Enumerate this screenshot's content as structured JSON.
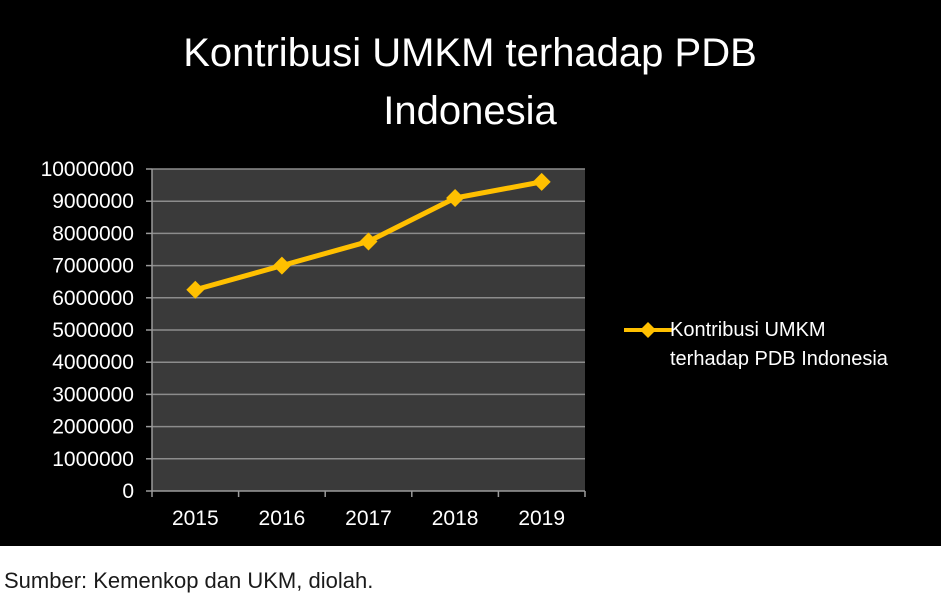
{
  "chart_data": {
    "type": "line",
    "title": "Kontribusi UMKM terhadap PDB Indonesia",
    "title_lines": [
      "Kontribusi UMKM terhadap PDB",
      "Indonesia"
    ],
    "categories": [
      "2015",
      "2016",
      "2017",
      "2018",
      "2019"
    ],
    "series": [
      {
        "name": "Kontribusi UMKM terhadap PDB Indonesia",
        "name_lines": [
          "Kontribusi UMKM",
          "terhadap PDB Indonesia"
        ],
        "values": [
          6250000,
          7000000,
          7750000,
          9100000,
          9600000
        ],
        "color": "#ffc000",
        "marker": "diamond"
      }
    ],
    "y_ticks": [
      "10000000",
      "9000000",
      "8000000",
      "7000000",
      "6000000",
      "5000000",
      "4000000",
      "3000000",
      "2000000",
      "1000000",
      "0"
    ],
    "ylim": [
      0,
      10000000
    ],
    "xlabel": "",
    "ylabel": "",
    "grid": true,
    "legend_position": "right",
    "plot_background": "#3a3a3a",
    "background": "#000000"
  },
  "source_note": "Sumber: Kemenkop dan UKM, diolah."
}
